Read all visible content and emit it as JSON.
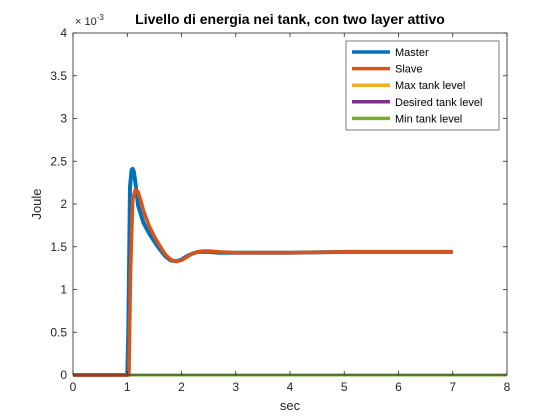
{
  "chart_data": {
    "type": "line",
    "title": "Livello di energia nei tank, con two layer attivo",
    "xlabel": "sec",
    "ylabel": "Joule",
    "xlim": [
      0,
      8
    ],
    "ylim": [
      0,
      0.004
    ],
    "xticks": [
      0,
      1,
      2,
      3,
      4,
      5,
      6,
      7,
      8
    ],
    "yticks": [
      0,
      0.0005,
      0.001,
      0.0015,
      0.002,
      0.0025,
      0.003,
      0.0035,
      0.004
    ],
    "ytick_labels": [
      "0",
      "0.5",
      "1",
      "1.5",
      "2",
      "2.5",
      "3",
      "3.5",
      "4"
    ],
    "y_exponent_label": "× 10",
    "y_exponent_power": "-3",
    "grid": false,
    "legend_position": "top-right",
    "series": [
      {
        "name": "Master",
        "color": "#0072BD",
        "x": [
          0,
          1.0,
          1.02,
          1.05,
          1.08,
          1.1,
          1.12,
          1.15,
          1.2,
          1.3,
          1.4,
          1.5,
          1.6,
          1.7,
          1.8,
          1.9,
          2.0,
          2.1,
          2.2,
          2.3,
          2.4,
          2.5,
          2.7,
          3.0,
          3.5,
          4.0,
          5.0,
          6.0,
          7.0
        ],
        "y": [
          0,
          0,
          0.0005,
          0.0022,
          0.0024,
          0.00241,
          0.00238,
          0.00225,
          0.00198,
          0.00178,
          0.00166,
          0.00156,
          0.00147,
          0.00139,
          0.00134,
          0.00133,
          0.00135,
          0.00139,
          0.00142,
          0.00144,
          0.00144,
          0.00144,
          0.00143,
          0.00143,
          0.00143,
          0.00143,
          0.00144,
          0.00144,
          0.00144
        ]
      },
      {
        "name": "Slave",
        "color": "#D95319",
        "x": [
          0,
          1.03,
          1.06,
          1.1,
          1.15,
          1.2,
          1.25,
          1.3,
          1.4,
          1.5,
          1.6,
          1.7,
          1.8,
          1.9,
          2.0,
          2.1,
          2.2,
          2.3,
          2.4,
          2.5,
          2.7,
          3.0,
          3.5,
          4.0,
          5.0,
          6.0,
          7.0
        ],
        "y": [
          0,
          0,
          0.0012,
          0.00205,
          0.00217,
          0.00214,
          0.00204,
          0.00192,
          0.00175,
          0.00162,
          0.00151,
          0.00141,
          0.00135,
          0.00133,
          0.00134,
          0.00138,
          0.00142,
          0.00144,
          0.00145,
          0.00145,
          0.00144,
          0.00143,
          0.00143,
          0.00143,
          0.00144,
          0.00144,
          0.00144
        ]
      },
      {
        "name": "Max tank level",
        "color": "#EDB120",
        "x": [
          0,
          8
        ],
        "y": [
          0,
          0
        ]
      },
      {
        "name": "Desired tank level",
        "color": "#7E2F8E",
        "x": [
          0,
          8
        ],
        "y": [
          0,
          0
        ]
      },
      {
        "name": "Min tank level",
        "color": "#77AC30",
        "x": [
          0,
          8
        ],
        "y": [
          0,
          0
        ]
      }
    ]
  }
}
